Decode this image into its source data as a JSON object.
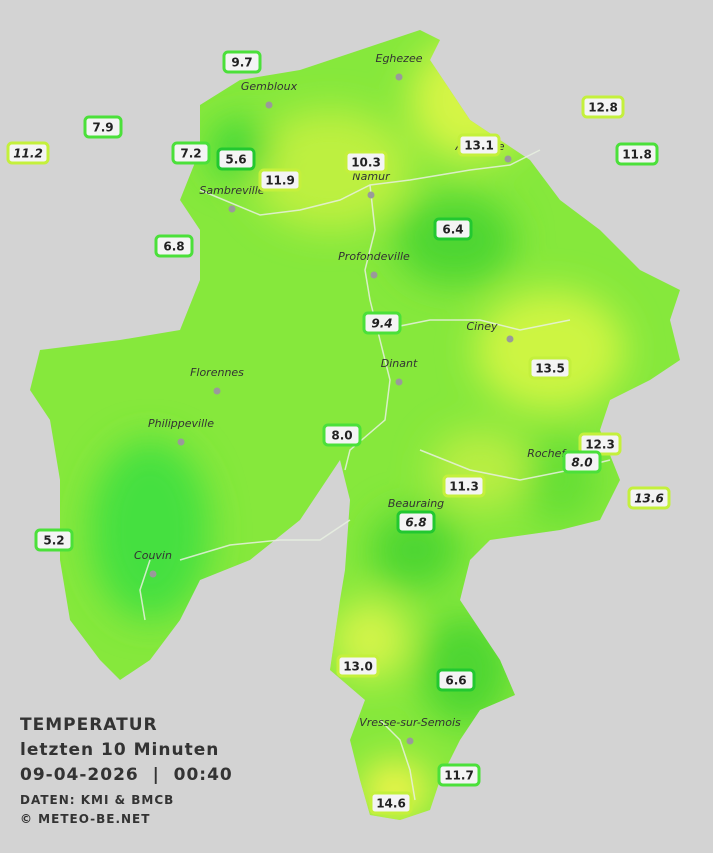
{
  "legend": {
    "title": "TEMPERATUR",
    "period": "letzten 10 Minuten",
    "datetime": "09-04-2026  |  00:40",
    "source": "DATEN: KMI & BMCB",
    "copyright": "© METEO-BE.NET"
  },
  "towns": [
    "Eghezee",
    "Gembloux",
    "Andenne",
    "Namur",
    "Sambreville",
    "Profondeville",
    "Ciney",
    "Dinant",
    "Florennes",
    "Philippeville",
    "Rochefort",
    "Beauraing",
    "Couvin",
    "Vresse-sur-Semois"
  ],
  "stations": [
    {
      "value": "9.7"
    },
    {
      "value": "7.9"
    },
    {
      "value": "11.2",
      "italic": true
    },
    {
      "value": "7.2"
    },
    {
      "value": "5.6"
    },
    {
      "value": "11.9"
    },
    {
      "value": "10.3"
    },
    {
      "value": "13.1"
    },
    {
      "value": "12.8"
    },
    {
      "value": "11.8"
    },
    {
      "value": "6.4"
    },
    {
      "value": "6.8"
    },
    {
      "value": "9.4",
      "italic": true
    },
    {
      "value": "13.5"
    },
    {
      "value": "8.0"
    },
    {
      "value": "12.3"
    },
    {
      "value": "8.0",
      "italic": true
    },
    {
      "value": "13.6",
      "italic": true
    },
    {
      "value": "11.3"
    },
    {
      "value": "6.8",
      "italic": true
    },
    {
      "value": "5.2"
    },
    {
      "value": "13.0"
    },
    {
      "value": "6.6"
    },
    {
      "value": "11.7"
    },
    {
      "value": "14.6"
    }
  ]
}
